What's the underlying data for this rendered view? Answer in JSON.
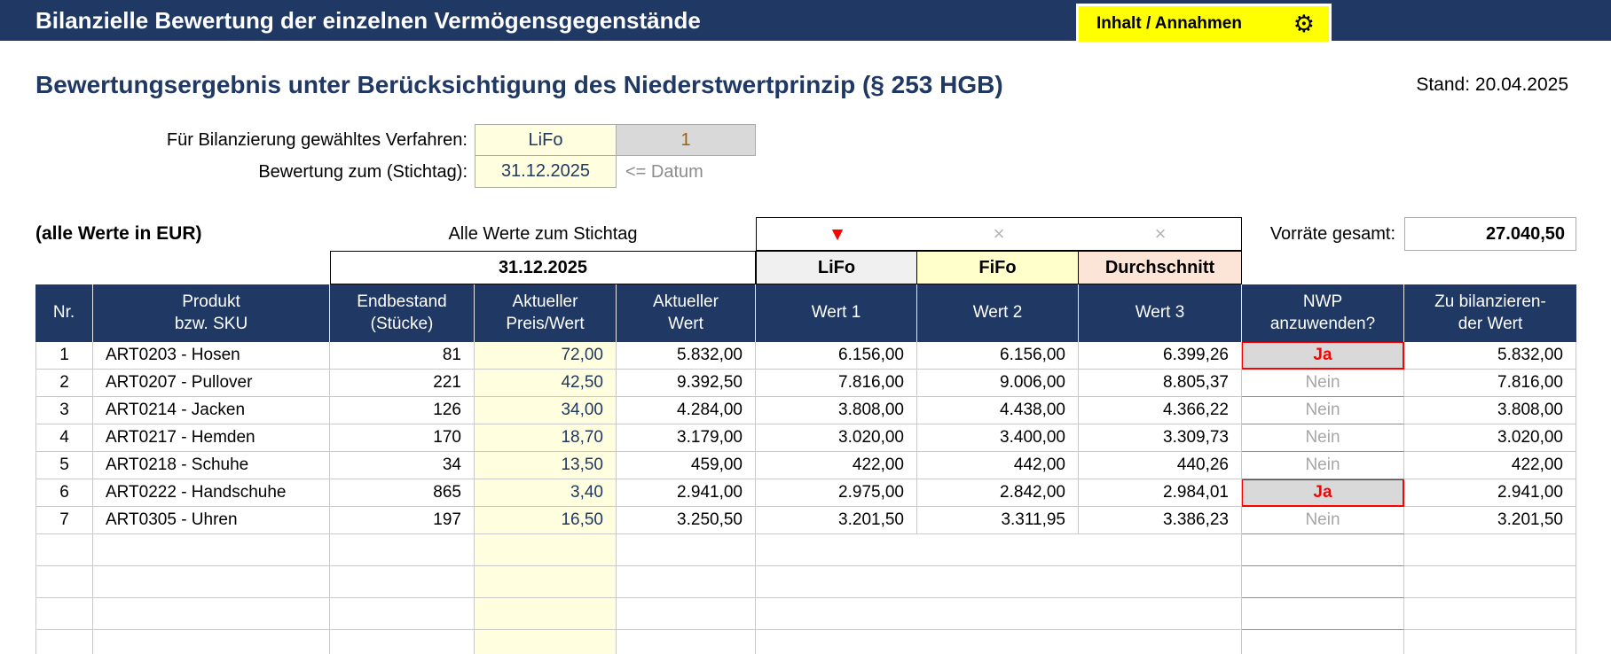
{
  "topbar": {
    "title": "Bilanzielle Bewertung der einzelnen Vermögensgegenstände",
    "button_label": "Inhalt / Annahmen",
    "gear_icon": "⚙"
  },
  "header": {
    "title": "Bewertungsergebnis unter Berücksichtigung des Niederstwertprinzip (§ 253 HGB)",
    "stand": "Stand: 20.04.2025"
  },
  "form": {
    "method_label": "Für Bilanzierung gewähltes Verfahren:",
    "method_value": "LiFo",
    "method_code": "1",
    "date_label": "Bewertung zum (Stichtag):",
    "date_value": "31.12.2025",
    "date_hint": "<= Datum"
  },
  "annotations": {
    "values_note": "(alle Werte in EUR)",
    "stichtag_note": "Alle Werte zum Stichtag",
    "selected_marker": "▼",
    "unselected_marker": "×",
    "total_label": "Vorräte gesamt:",
    "total_value": "27.040,50"
  },
  "subheader": {
    "date": "31.12.2025",
    "lifo": "LiFo",
    "fifo": "FiFo",
    "durchschnitt": "Durchschnitt"
  },
  "table": {
    "nwp_yes_value": "Ja",
    "columns": [
      {
        "line1": "Nr.",
        "line2": ""
      },
      {
        "line1": "Produkt",
        "line2": "bzw. SKU"
      },
      {
        "line1": "Endbestand",
        "line2": "(Stücke)"
      },
      {
        "line1": "Aktueller",
        "line2": "Preis/Wert"
      },
      {
        "line1": "Aktueller",
        "line2": "Wert"
      },
      {
        "line1": "Wert 1",
        "line2": ""
      },
      {
        "line1": "Wert 2",
        "line2": ""
      },
      {
        "line1": "Wert 3",
        "line2": ""
      },
      {
        "line1": "NWP",
        "line2": "anzuwenden?"
      },
      {
        "line1": "Zu bilanzieren-",
        "line2": "der Wert"
      }
    ],
    "rows": [
      {
        "nr": "1",
        "produkt": "ART0203 - Hosen",
        "endbestand": "81",
        "preis": "72,00",
        "aktueller_wert": "5.832,00",
        "wert1": "6.156,00",
        "wert2": "6.156,00",
        "wert3": "6.399,26",
        "nwp": "Ja",
        "bilanz_wert": "5.832,00"
      },
      {
        "nr": "2",
        "produkt": "ART0207 - Pullover",
        "endbestand": "221",
        "preis": "42,50",
        "aktueller_wert": "9.392,50",
        "wert1": "7.816,00",
        "wert2": "9.006,00",
        "wert3": "8.805,37",
        "nwp": "Nein",
        "bilanz_wert": "7.816,00"
      },
      {
        "nr": "3",
        "produkt": "ART0214 - Jacken",
        "endbestand": "126",
        "preis": "34,00",
        "aktueller_wert": "4.284,00",
        "wert1": "3.808,00",
        "wert2": "4.438,00",
        "wert3": "4.366,22",
        "nwp": "Nein",
        "bilanz_wert": "3.808,00"
      },
      {
        "nr": "4",
        "produkt": "ART0217 - Hemden",
        "endbestand": "170",
        "preis": "18,70",
        "aktueller_wert": "3.179,00",
        "wert1": "3.020,00",
        "wert2": "3.400,00",
        "wert3": "3.309,73",
        "nwp": "Nein",
        "bilanz_wert": "3.020,00"
      },
      {
        "nr": "5",
        "produkt": "ART0218 - Schuhe",
        "endbestand": "34",
        "preis": "13,50",
        "aktueller_wert": "459,00",
        "wert1": "422,00",
        "wert2": "442,00",
        "wert3": "440,26",
        "nwp": "Nein",
        "bilanz_wert": "422,00"
      },
      {
        "nr": "6",
        "produkt": "ART0222 - Handschuhe",
        "endbestand": "865",
        "preis": "3,40",
        "aktueller_wert": "2.941,00",
        "wert1": "2.975,00",
        "wert2": "2.842,00",
        "wert3": "2.984,01",
        "nwp": "Ja",
        "bilanz_wert": "2.941,00"
      },
      {
        "nr": "7",
        "produkt": "ART0305 - Uhren",
        "endbestand": "197",
        "preis": "16,50",
        "aktueller_wert": "3.250,50",
        "wert1": "3.201,50",
        "wert2": "3.311,95",
        "wert3": "3.386,23",
        "nwp": "Nein",
        "bilanz_wert": "3.201,50"
      }
    ]
  },
  "colors": {
    "navy": "#1F3864",
    "button_yellow": "#FFFF00",
    "input_yellow": "#FFFFE0",
    "fifo_yellow": "#FFFFCC",
    "durchschnitt_peach": "#FCE4D6",
    "calc_gray": "#D9D9D9",
    "nwp_red": "#FF0000",
    "nein_gray": "#A6A6A6"
  }
}
